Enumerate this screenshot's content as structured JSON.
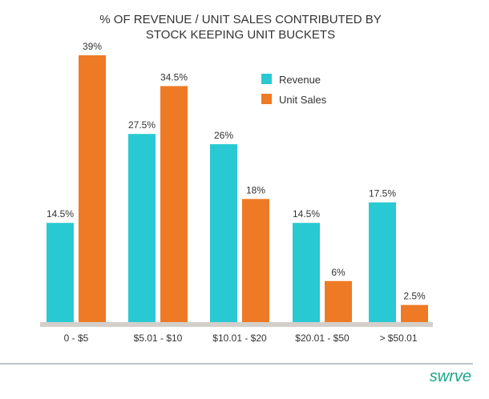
{
  "chart_data": {
    "type": "bar",
    "title": [
      "% OF REVENUE / UNIT SALES CONTRIBUTED BY",
      "STOCK KEEPING UNIT BUCKETS"
    ],
    "categories": [
      "0 - $5",
      "$5.01 - $10",
      "$10.01 - $20",
      "$20.01 - $50",
      "> $50.01"
    ],
    "series": [
      {
        "name": "Revenue",
        "color": "#29c9d3",
        "values": [
          14.5,
          27.5,
          26,
          14.5,
          17.5
        ],
        "labels": [
          "14.5%",
          "27.5%",
          "26%",
          "14.5%",
          "17.5%"
        ]
      },
      {
        "name": "Unit Sales",
        "color": "#ef7a26",
        "values": [
          39,
          34.5,
          18,
          6,
          2.5
        ],
        "labels": [
          "39%",
          "34.5%",
          "18%",
          "6%",
          "2.5%"
        ]
      }
    ],
    "ylim": [
      0,
      39
    ],
    "grid": false,
    "legend": "top-right"
  },
  "brand": {
    "logo_text": "swrve",
    "color": "#1aa68a"
  }
}
